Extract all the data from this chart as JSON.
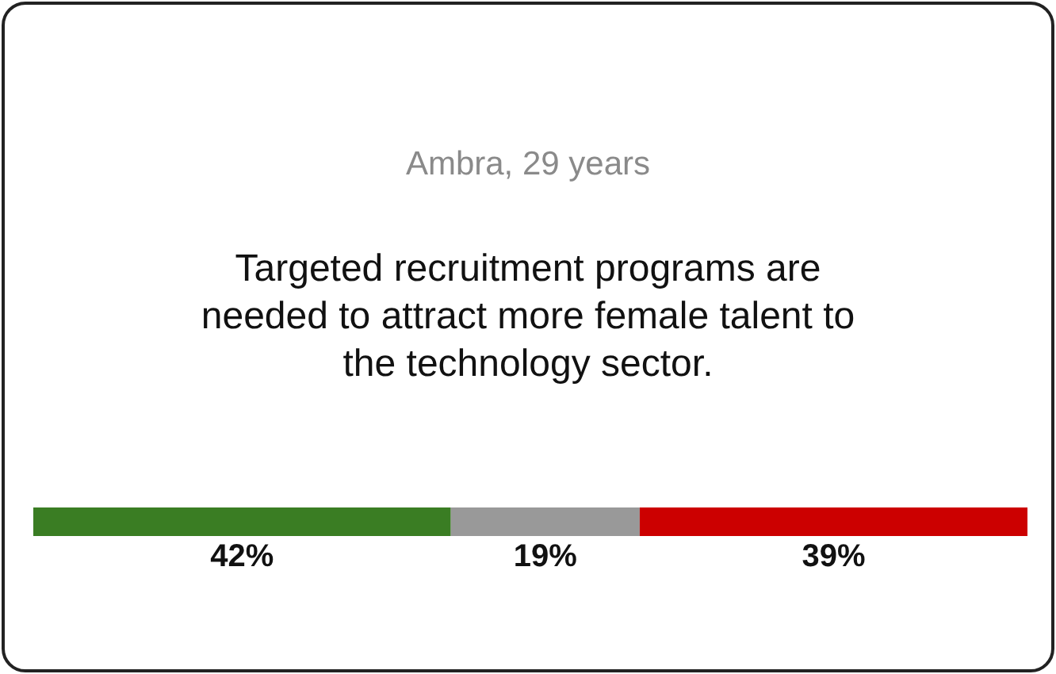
{
  "chart_data": {
    "type": "bar",
    "orientation": "horizontal",
    "stacked": true,
    "title": "Ambra, 29 years",
    "subtitle": "Targeted recruitment programs are needed to attract more female talent to the technology sector.",
    "categories": [
      null
    ],
    "series": [
      {
        "color": "#3a7d23",
        "values": [
          42
        ],
        "value_labels": [
          "42%"
        ]
      },
      {
        "color": "#999999",
        "values": [
          19
        ],
        "value_labels": [
          "19%"
        ]
      },
      {
        "color": "#cc0000",
        "values": [
          39
        ],
        "value_labels": [
          "39%"
        ]
      }
    ]
  }
}
